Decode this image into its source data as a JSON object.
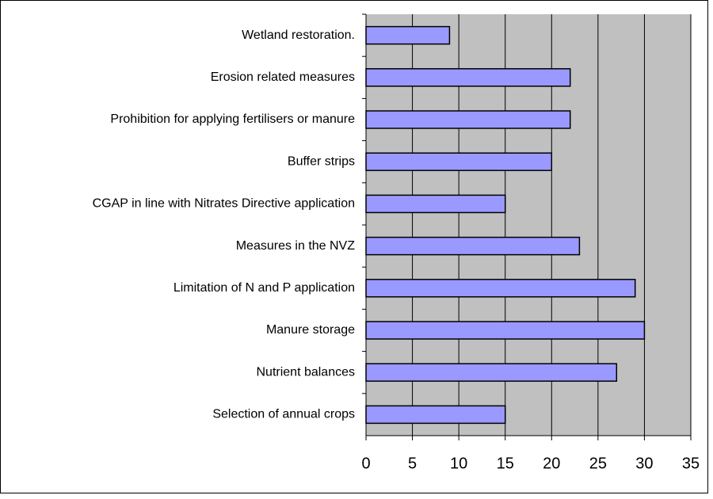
{
  "chart_data": {
    "type": "bar",
    "orientation": "horizontal",
    "categories": [
      "Wetland restoration.",
      "Erosion related measures",
      "Prohibition for applying fertilisers or manure",
      "Buffer strips",
      "CGAP in line with Nitrates Directive application",
      "Measures in the NVZ",
      "Limitation of N and P application",
      "Manure storage",
      "Nutrient balances",
      "Selection of annual crops"
    ],
    "values": [
      9,
      22,
      22,
      20,
      15,
      23,
      29,
      30,
      27,
      15
    ],
    "color": "#9999ff",
    "plot_background": "#c0c0c0",
    "xlim": [
      0,
      35
    ],
    "xticks": [
      0,
      5,
      10,
      15,
      20,
      25,
      30,
      35
    ],
    "grid": true
  }
}
